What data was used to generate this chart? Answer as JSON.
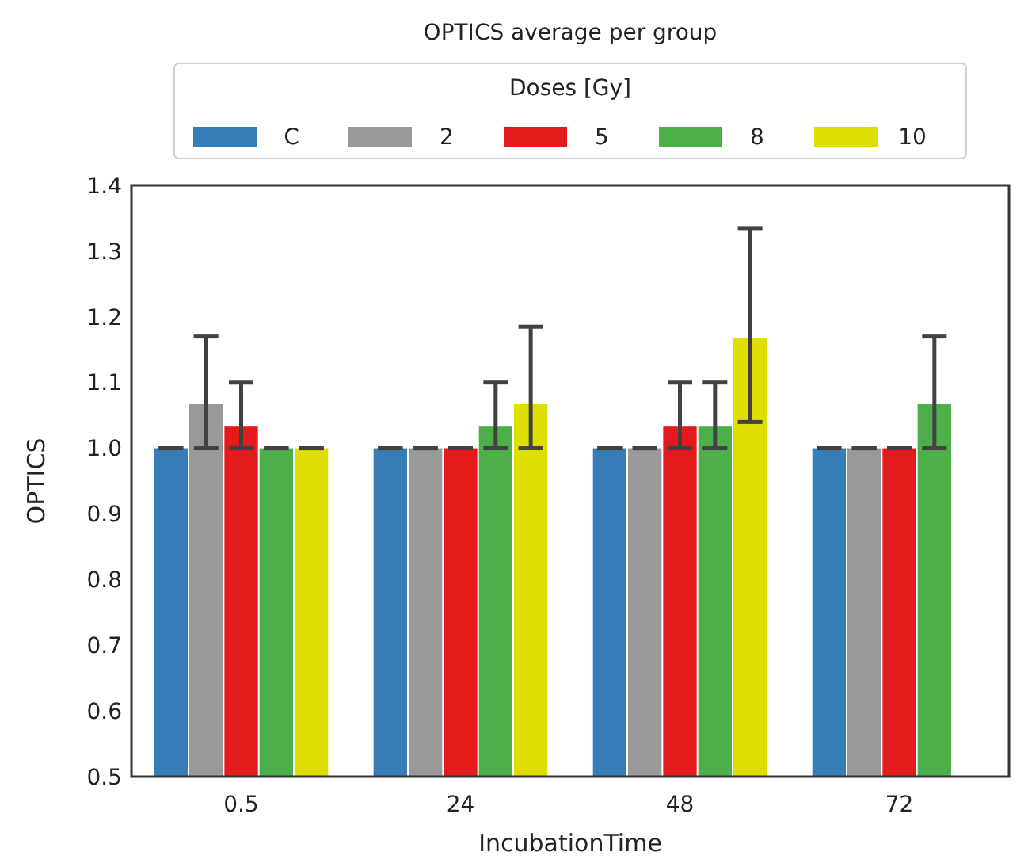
{
  "chart_data": {
    "type": "bar",
    "title": "OPTICS average per group",
    "xlabel": "IncubationTime",
    "ylabel": "OPTICS",
    "legend_title": "Doses [Gy]",
    "legend": "top",
    "grid": false,
    "categories": [
      "0.5",
      "24",
      "48",
      "72"
    ],
    "ylim": [
      0.5,
      1.4
    ],
    "yticks": [
      0.5,
      0.6,
      0.7,
      0.8,
      0.9,
      {
        "value": 1.0,
        "label": "1.0"
      },
      1.1,
      1.2,
      1.3,
      1.4
    ],
    "series": [
      {
        "name": "C",
        "color": "#377eb8",
        "values": [
          1.0,
          1.0,
          1.0,
          1.0
        ],
        "errors": [
          [
            1.0,
            1.0
          ],
          [
            1.0,
            1.0
          ],
          [
            1.0,
            1.0
          ],
          [
            1.0,
            1.0
          ]
        ]
      },
      {
        "name": "2",
        "color": "#999999",
        "values": [
          1.067,
          1.0,
          1.0,
          1.0
        ],
        "errors": [
          [
            1.0,
            1.17
          ],
          [
            1.0,
            1.0
          ],
          [
            1.0,
            1.0
          ],
          [
            1.0,
            1.0
          ]
        ]
      },
      {
        "name": "5",
        "color": "#e41a1c",
        "values": [
          1.033,
          1.0,
          1.033,
          1.0
        ],
        "errors": [
          [
            1.0,
            1.1
          ],
          [
            1.0,
            1.0
          ],
          [
            1.0,
            1.1
          ],
          [
            1.0,
            1.0
          ]
        ]
      },
      {
        "name": "8",
        "color": "#4daf4a",
        "values": [
          1.0,
          1.033,
          1.033,
          1.067
        ],
        "errors": [
          [
            1.0,
            1.0
          ],
          [
            1.0,
            1.1
          ],
          [
            1.0,
            1.1
          ],
          [
            1.0,
            1.17
          ]
        ]
      },
      {
        "name": "10",
        "color": "#dede00",
        "values": [
          1.0,
          1.067,
          1.167,
          null
        ],
        "errors": [
          [
            1.0,
            1.0
          ],
          [
            1.0,
            1.185
          ],
          [
            1.04,
            1.335
          ],
          null
        ]
      }
    ]
  }
}
